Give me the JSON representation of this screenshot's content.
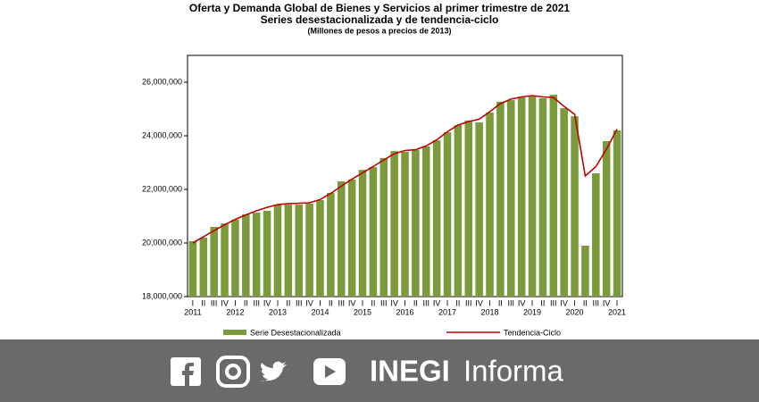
{
  "chart_data": {
    "type": "bar",
    "title": "Oferta y Demanda Global de Bienes y Servicios al primer trimestre de 2021",
    "subtitle": "Series desestacionalizada y de tendencia-ciclo",
    "note": "(Millones  de pesos a precios de 2013)",
    "categories": [
      "I",
      "II",
      "III",
      "IV",
      "I",
      "II",
      "III",
      "IV",
      "I",
      "II",
      "III",
      "IV",
      "I",
      "II",
      "III",
      "IV",
      "I",
      "II",
      "III",
      "IV",
      "I",
      "II",
      "III",
      "IV",
      "I",
      "II",
      "III",
      "IV",
      "I",
      "II",
      "III",
      "IV",
      "I",
      "II",
      "III",
      "IV",
      "I",
      "II",
      "III",
      "IV",
      "I"
    ],
    "year_labels": [
      "2011",
      "2012",
      "2013",
      "2014",
      "2015",
      "2016",
      "2017",
      "2018",
      "2019",
      "2020",
      "2021"
    ],
    "series": [
      {
        "name": "Serie Desestacionalizada",
        "color": "#7a9a3c",
        "type": "bar",
        "values": [
          20070000,
          20200000,
          20600000,
          20730000,
          20870000,
          21070000,
          21130000,
          21200000,
          21430000,
          21430000,
          21430000,
          21470000,
          21600000,
          21870000,
          22300000,
          22370000,
          22730000,
          22830000,
          23170000,
          23430000,
          23400000,
          23470000,
          23600000,
          23830000,
          24130000,
          24400000,
          24570000,
          24500000,
          24870000,
          25270000,
          25330000,
          25430000,
          25470000,
          25400000,
          25530000,
          25030000,
          24730000,
          19900000,
          22600000,
          23800000,
          24200000
        ]
      },
      {
        "name": "Tendencia-Ciclo",
        "color": "#c00000",
        "type": "line",
        "values": [
          20000000,
          20230000,
          20460000,
          20680000,
          20880000,
          21050000,
          21200000,
          21330000,
          21430000,
          21470000,
          21480000,
          21500000,
          21620000,
          21850000,
          22120000,
          22380000,
          22620000,
          22850000,
          23100000,
          23330000,
          23450000,
          23480000,
          23620000,
          23850000,
          24150000,
          24400000,
          24530000,
          24620000,
          24900000,
          25200000,
          25370000,
          25450000,
          25500000,
          25450000,
          25430000,
          25100000,
          24800000,
          22500000,
          22850000,
          23500000,
          24250000
        ]
      }
    ],
    "ylim": [
      18000000,
      27000000
    ],
    "yticks": [
      {
        "value": 18000000,
        "label": "18,000,000"
      },
      {
        "value": 20000000,
        "label": "20,000,000"
      },
      {
        "value": 22000000,
        "label": "22,000,000"
      },
      {
        "value": 24000000,
        "label": "24,000,000"
      },
      {
        "value": 26000000,
        "label": "26,000,000"
      }
    ],
    "grid": false
  },
  "footer": {
    "brand": "INEGI",
    "tagline": "Informa"
  }
}
